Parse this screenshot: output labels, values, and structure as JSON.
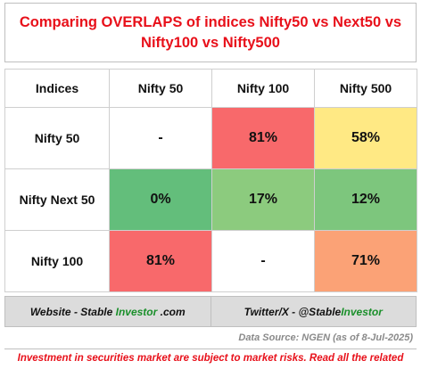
{
  "title": "Comparing OVERLAPS of indices Nifty50 vs Next50 vs Nifty100 vs Nifty500",
  "table": {
    "header": [
      "Indices",
      "Nifty 50",
      "Nifty 100",
      "Nifty 500"
    ],
    "rows": [
      {
        "label": "Nifty 50",
        "cells": [
          {
            "value": "-",
            "color": "#ffffff"
          },
          {
            "value": "81%",
            "color": "#f8696b"
          },
          {
            "value": "58%",
            "color": "#ffe984"
          }
        ]
      },
      {
        "label": "Nifty Next 50",
        "cells": [
          {
            "value": "0%",
            "color": "#63be7b"
          },
          {
            "value": "17%",
            "color": "#8ccb7e"
          },
          {
            "value": "12%",
            "color": "#7dc67d"
          }
        ]
      },
      {
        "label": "Nifty 100",
        "cells": [
          {
            "value": "81%",
            "color": "#f8696b"
          },
          {
            "value": "-",
            "color": "#ffffff"
          },
          {
            "value": "71%",
            "color": "#fba276"
          }
        ]
      }
    ]
  },
  "footer": {
    "website_prefix": "Website - Stable",
    "website_brand": "Investor",
    "website_suffix": ".com",
    "twitter_prefix": "Twitter/X - @Stable",
    "twitter_brand": "Investor"
  },
  "source": "Data Source: NGEN (as of 8-Jul-2025)",
  "disclaimer": "Investment in securities market are subject to market risks. Read all the related"
}
